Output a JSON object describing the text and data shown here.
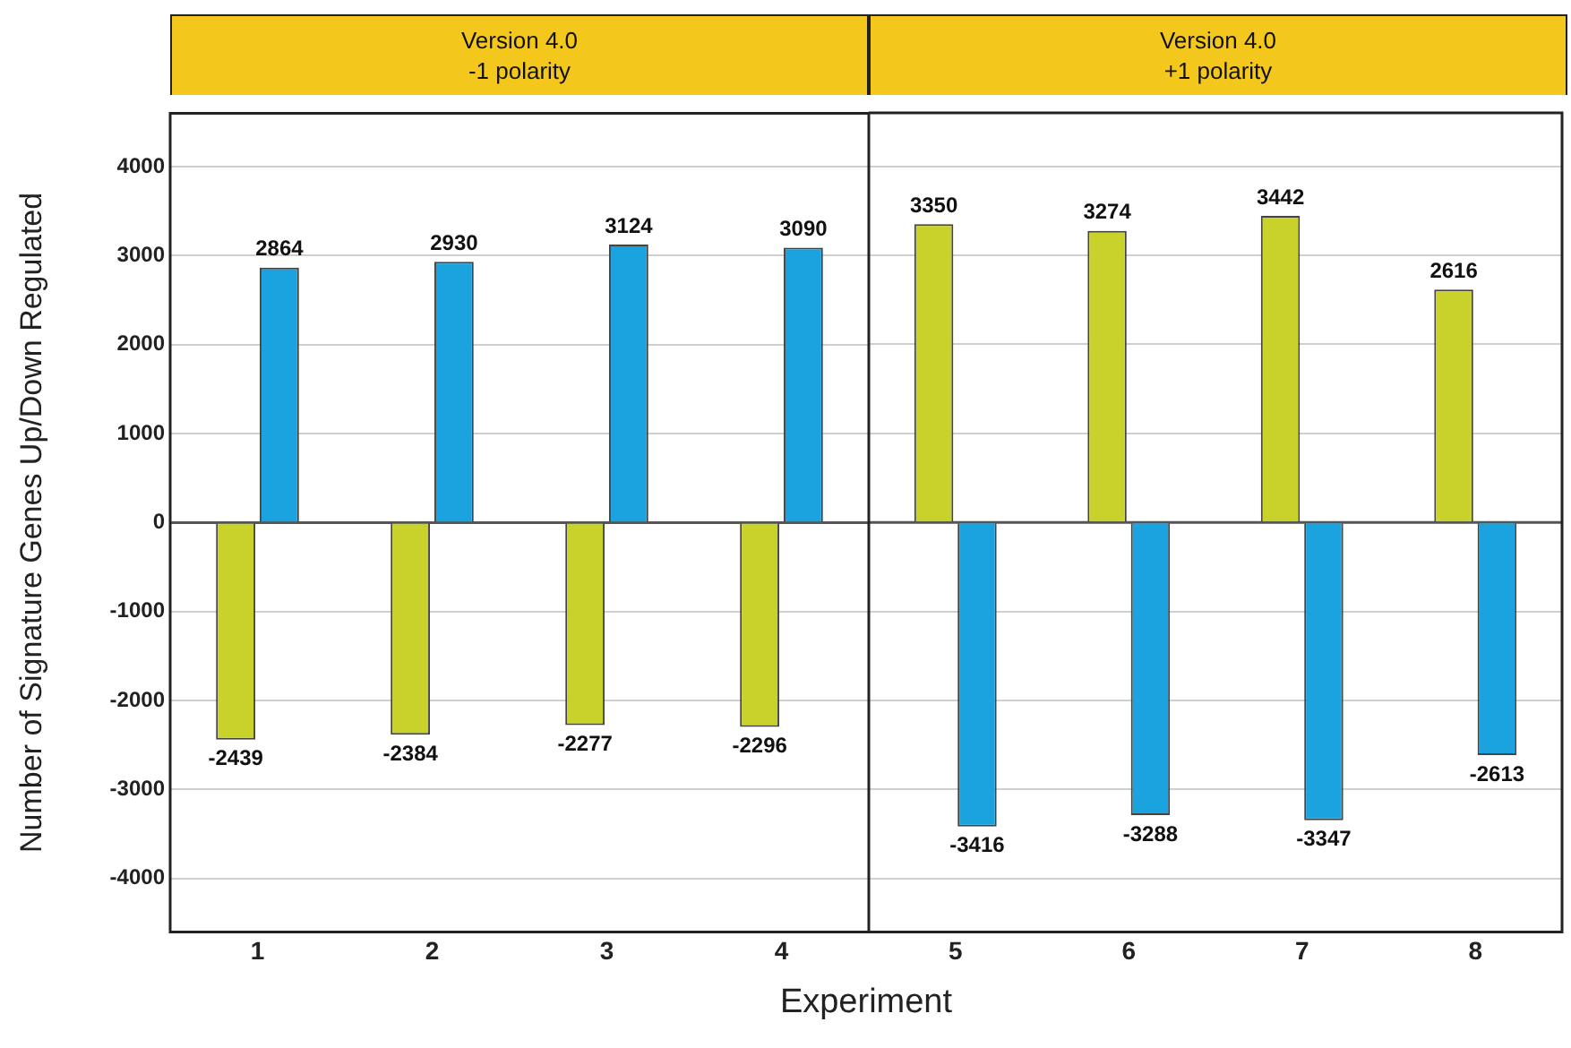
{
  "chart_data": [
    {
      "type": "bar",
      "title": "Version 4.0\n-1 polarity",
      "ylabel": "Number of Signature Genes Up/Down Regulated",
      "xlabel": "Experiment",
      "categories": [
        "1",
        "2",
        "3",
        "4"
      ],
      "series": [
        {
          "color": "#c9d22b",
          "values": [
            -2439,
            -2384,
            -2277,
            -2296
          ]
        },
        {
          "color": "#1ba3e0",
          "values": [
            2864,
            2930,
            3124,
            3090
          ]
        }
      ],
      "ylim": [
        -4600,
        4600
      ],
      "yticks": [
        -4000,
        -3000,
        -2000,
        -1000,
        0,
        1000,
        2000,
        3000,
        4000
      ],
      "grid": "y",
      "data_labels": true,
      "ref_lines": [
        {
          "axis": "y",
          "value": 0,
          "color": "#555555"
        }
      ]
    },
    {
      "type": "bar",
      "title": "Version 4.0\n+1 polarity",
      "categories": [
        "5",
        "6",
        "7",
        "8"
      ],
      "series": [
        {
          "color": "#c9d22b",
          "values": [
            3350,
            3274,
            3442,
            2616
          ]
        },
        {
          "color": "#1ba3e0",
          "values": [
            -3416,
            -3288,
            -3347,
            -2613
          ]
        }
      ],
      "ylim": [
        -4600,
        4600
      ],
      "yticks": [
        -4000,
        -3000,
        -2000,
        -1000,
        0,
        1000,
        2000,
        3000,
        4000
      ],
      "grid": "y",
      "data_labels": true,
      "tick_labels": "x",
      "ref_lines": [
        {
          "axis": "y",
          "value": 0,
          "color": "#555555"
        }
      ]
    }
  ]
}
